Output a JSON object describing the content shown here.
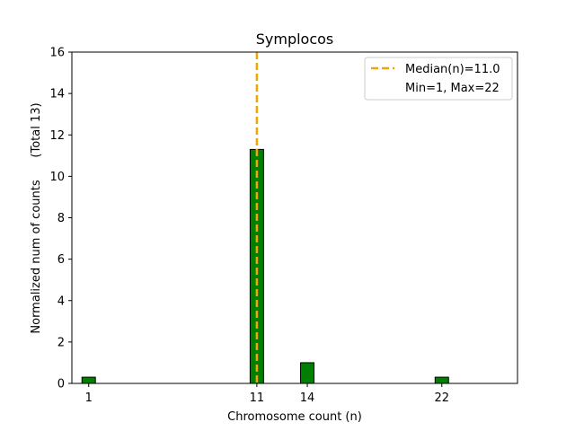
{
  "chart_data": {
    "type": "bar",
    "title": "Symplocos",
    "xlabel": "Chromosome count (n)",
    "ylabel": "Normalized num of counts      (Total 13)",
    "xlim": [
      0,
      26.5
    ],
    "ylim": [
      0,
      16
    ],
    "xticks": [
      1,
      11,
      14,
      22
    ],
    "yticks": [
      0,
      2,
      4,
      6,
      8,
      10,
      12,
      14,
      16
    ],
    "bar_width": 0.8,
    "bars": [
      {
        "x": 1,
        "value": 0.3
      },
      {
        "x": 11,
        "value": 11.3
      },
      {
        "x": 14,
        "value": 1.0
      },
      {
        "x": 22,
        "value": 0.3
      }
    ],
    "median": 11.0,
    "legend": {
      "position": "top-right",
      "entries": [
        "Median(n)=11.0",
        "Min=1, Max=22"
      ]
    },
    "colors": {
      "bar_fill": "#008000",
      "bar_edge": "#000000",
      "median_line": "#f0a30a"
    },
    "grid": false
  }
}
